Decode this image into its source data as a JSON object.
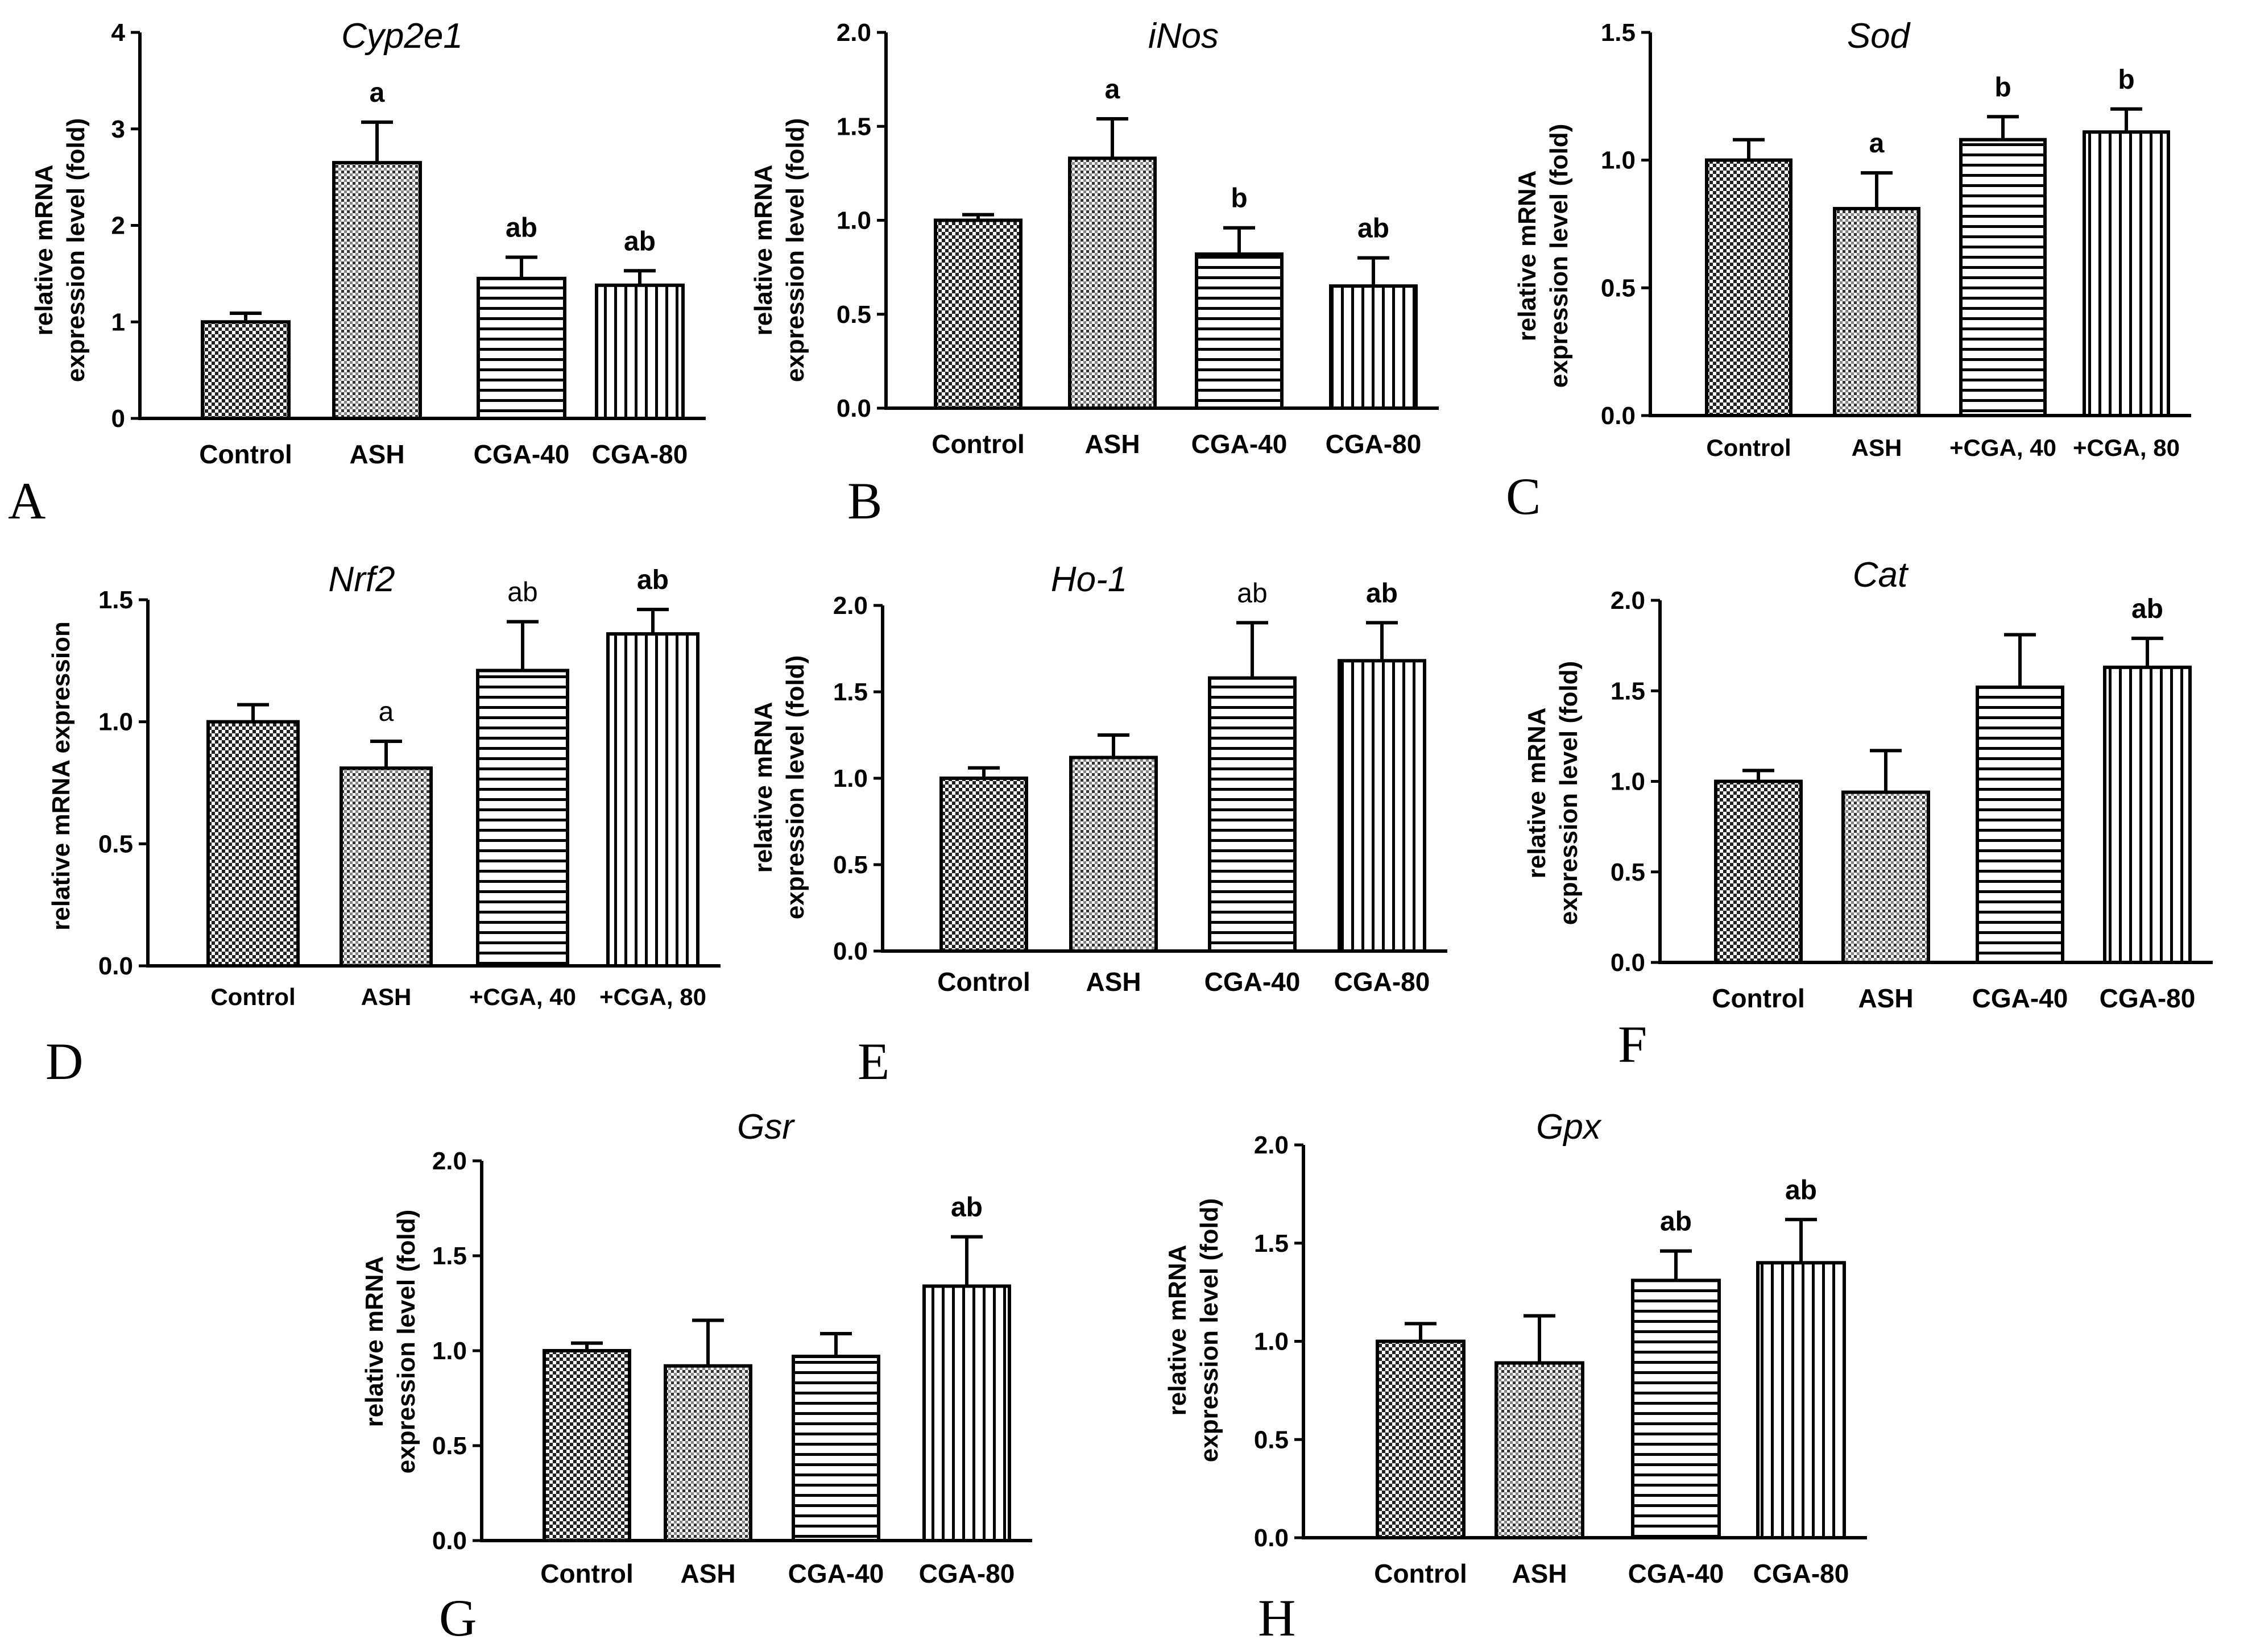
{
  "figure": {
    "background": "#ffffff",
    "ink": "#000000"
  },
  "chart_data": [
    {
      "type": "bar",
      "panel": "A",
      "title": "Cyp2e1",
      "ylabel": [
        "relative mRNA",
        "expression level (fold)"
      ],
      "categories": [
        "Control",
        "ASH",
        "CGA-40",
        "CGA-80"
      ],
      "values": [
        1.0,
        2.65,
        1.45,
        1.38
      ],
      "errors": [
        0.09,
        0.42,
        0.22,
        0.15
      ],
      "annotations": [
        "",
        "a",
        "ab",
        "ab"
      ],
      "ylim": [
        0,
        4
      ],
      "yticks": [
        "0",
        "1",
        "2",
        "3",
        "4"
      ],
      "patterns": [
        "check",
        "dots",
        "horizontal",
        "vertical"
      ]
    },
    {
      "type": "bar",
      "panel": "B",
      "title": "iNos",
      "ylabel": [
        "relative mRNA",
        "expression level (fold)"
      ],
      "categories": [
        "Control",
        "ASH",
        "CGA-40",
        "CGA-80"
      ],
      "values": [
        1.0,
        1.33,
        0.82,
        0.65
      ],
      "errors": [
        0.03,
        0.21,
        0.14,
        0.15
      ],
      "annotations": [
        "",
        "a",
        "b",
        "ab"
      ],
      "ylim": [
        0,
        2
      ],
      "yticks": [
        "0.0",
        "0.5",
        "1.0",
        "1.5",
        "2.0"
      ],
      "patterns": [
        "check",
        "dots",
        "horizontal",
        "vertical"
      ]
    },
    {
      "type": "bar",
      "panel": "C",
      "title": "Sod",
      "ylabel": [
        "relative mRNA",
        "expression level (fold)"
      ],
      "categories": [
        "Control",
        "ASH",
        "+CGA, 40",
        "+CGA, 80"
      ],
      "values": [
        1.0,
        0.81,
        1.08,
        1.11
      ],
      "errors": [
        0.08,
        0.14,
        0.09,
        0.09
      ],
      "annotations": [
        "",
        "a",
        "b",
        "b"
      ],
      "ylim": [
        0,
        1.5
      ],
      "yticks": [
        "0.0",
        "0.5",
        "1.0",
        "1.5"
      ],
      "patterns": [
        "check",
        "dots",
        "horizontal",
        "vertical"
      ]
    },
    {
      "type": "bar",
      "panel": "D",
      "title": "Nrf2",
      "ylabel": [
        "relative mRNA expression"
      ],
      "categories": [
        "Control",
        "ASH",
        "+CGA, 40",
        "+CGA, 80"
      ],
      "values": [
        1.0,
        0.81,
        1.21,
        1.36
      ],
      "errors": [
        0.07,
        0.11,
        0.2,
        0.1
      ],
      "annotations": [
        "",
        "a",
        "ab",
        "ab"
      ],
      "ylim": [
        0,
        1.5
      ],
      "yticks": [
        "0.0",
        "0.5",
        "1.0",
        "1.5"
      ],
      "patterns": [
        "check",
        "dots",
        "horizontal",
        "vertical"
      ]
    },
    {
      "type": "bar",
      "panel": "E",
      "title": "Ho-1",
      "ylabel": [
        "relative mRNA",
        "expression level (fold)"
      ],
      "categories": [
        "Control",
        "ASH",
        "CGA-40",
        "CGA-80"
      ],
      "values": [
        1.0,
        1.12,
        1.58,
        1.68
      ],
      "errors": [
        0.06,
        0.13,
        0.32,
        0.22
      ],
      "annotations": [
        "",
        "",
        "ab",
        "ab"
      ],
      "ylim": [
        0,
        2
      ],
      "yticks": [
        "0.0",
        "0.5",
        "1.0",
        "1.5",
        "2.0"
      ],
      "patterns": [
        "check",
        "dots",
        "horizontal",
        "vertical"
      ]
    },
    {
      "type": "bar",
      "panel": "F",
      "title": "Cat",
      "ylabel": [
        "relative mRNA",
        "expression level (fold)"
      ],
      "categories": [
        "Control",
        "ASH",
        "CGA-40",
        "CGA-80"
      ],
      "values": [
        1.0,
        0.94,
        1.52,
        1.63
      ],
      "errors": [
        0.06,
        0.23,
        0.29,
        0.16
      ],
      "annotations": [
        "",
        "",
        "",
        "ab"
      ],
      "ylim": [
        0,
        2
      ],
      "yticks": [
        "0.0",
        "0.5",
        "1.0",
        "1.5",
        "2.0"
      ],
      "patterns": [
        "check",
        "dots",
        "horizontal",
        "vertical"
      ]
    },
    {
      "type": "bar",
      "panel": "G",
      "title": "Gsr",
      "ylabel": [
        "relative mRNA",
        "expression level (fold)"
      ],
      "categories": [
        "Control",
        "ASH",
        "CGA-40",
        "CGA-80"
      ],
      "values": [
        1.0,
        0.92,
        0.97,
        1.34
      ],
      "errors": [
        0.04,
        0.24,
        0.12,
        0.26
      ],
      "annotations": [
        "",
        "",
        "",
        "ab"
      ],
      "ylim": [
        0,
        2
      ],
      "yticks": [
        "0.0",
        "0.5",
        "1.0",
        "1.5",
        "2.0"
      ],
      "patterns": [
        "check",
        "dots",
        "horizontal",
        "vertical"
      ]
    },
    {
      "type": "bar",
      "panel": "H",
      "title": "Gpx",
      "ylabel": [
        "relative mRNA",
        "expression level (fold)"
      ],
      "categories": [
        "Control",
        "ASH",
        "CGA-40",
        "CGA-80"
      ],
      "values": [
        1.0,
        0.89,
        1.31,
        1.4
      ],
      "errors": [
        0.09,
        0.24,
        0.15,
        0.22
      ],
      "annotations": [
        "",
        "",
        "ab",
        "ab"
      ],
      "ylim": [
        0,
        2
      ],
      "yticks": [
        "0.0",
        "0.5",
        "1.0",
        "1.5",
        "2.0"
      ],
      "patterns": [
        "check",
        "dots",
        "horizontal",
        "vertical"
      ]
    }
  ]
}
